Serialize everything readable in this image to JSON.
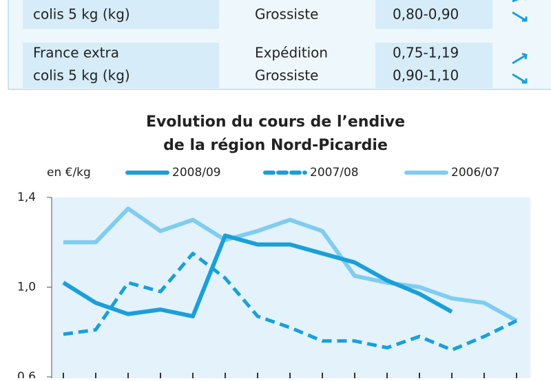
{
  "table": {
    "rows": [
      {
        "product": [
          "colis 5 kg (kg)"
        ],
        "stage": [
          "Grossiste"
        ],
        "price": [
          "0,80-0,90"
        ]
      },
      {
        "product": [
          "France extra",
          "colis 5 kg (kg)"
        ],
        "stage": [
          "Expédition",
          "Grossiste"
        ],
        "price": [
          "0,75-1,19",
          "0,90-1,10"
        ]
      }
    ]
  },
  "chart_data": {
    "type": "line",
    "title": [
      "Evolution du cours de l’endive",
      "de la région Nord-Picardie"
    ],
    "y_label": "en €/kg",
    "categories": [
      null,
      null,
      null,
      null,
      null,
      null,
      null,
      null,
      null,
      null,
      null,
      null,
      null,
      null,
      null
    ],
    "series": [
      {
        "name": "2008/09",
        "color": "#1a9fd9",
        "style": "solid",
        "values": [
          1.02,
          0.93,
          0.88,
          0.9,
          0.87,
          1.23,
          1.19,
          1.19,
          1.15,
          1.11,
          1.03,
          0.97,
          0.89,
          null,
          null
        ]
      },
      {
        "name": "2007/08",
        "color": "#1a9fd9",
        "style": "dashed",
        "values": [
          0.79,
          0.81,
          1.02,
          0.98,
          1.15,
          1.04,
          0.87,
          0.82,
          0.76,
          0.76,
          0.73,
          0.78,
          0.72,
          0.78,
          0.85
        ]
      },
      {
        "name": "2006/07",
        "color": "#7fcdf0",
        "style": "solid",
        "values": [
          1.2,
          1.2,
          1.35,
          1.25,
          1.3,
          1.21,
          1.25,
          1.3,
          1.25,
          1.05,
          1.02,
          1.0,
          0.95,
          0.93,
          0.85
        ]
      }
    ],
    "ylim": [
      0.6,
      1.4
    ],
    "yticks": [
      {
        "value": 0.6,
        "label": "0,6"
      },
      {
        "value": 1.0,
        "label": "1,0"
      },
      {
        "value": 1.4,
        "label": "1,4"
      }
    ]
  }
}
